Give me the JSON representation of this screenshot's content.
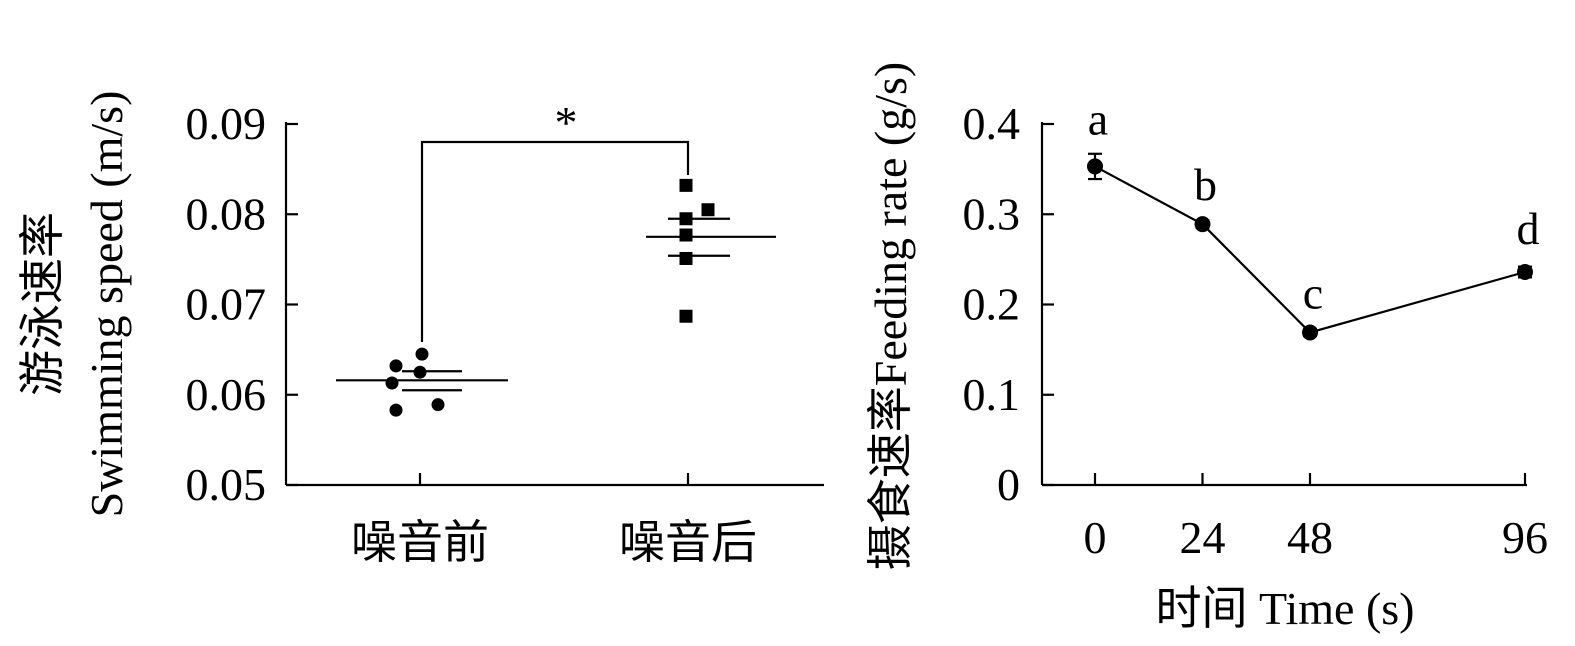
{
  "chart_data": [
    {
      "type": "scatter",
      "title": "",
      "ylabel_cn": "游泳速率",
      "ylabel_en": "Swimming speed (m/s)",
      "xlabel": "",
      "ylim": [
        0.05,
        0.09
      ],
      "yticks": [
        "0.05",
        "0.06",
        "0.07",
        "0.08",
        "0.09"
      ],
      "categories": [
        "噪音前",
        "噪音后"
      ],
      "groups": [
        {
          "category": "噪音前",
          "marker": "circle",
          "points": [
            0.0632,
            0.0645,
            0.0625,
            0.0613,
            0.0583,
            0.0589
          ],
          "mean": 0.0616,
          "se_upper": 0.0626,
          "se_lower": 0.0605
        },
        {
          "category": "噪音后",
          "marker": "square",
          "points": [
            0.0832,
            0.0795,
            0.0805,
            0.0777,
            0.0751,
            0.0687
          ],
          "mean": 0.0775,
          "se_upper": 0.0795,
          "se_lower": 0.0754
        }
      ],
      "significance": "*"
    },
    {
      "type": "line",
      "title": "",
      "ylabel": "摄食速率Feeding rate (g/s)",
      "xlabel": "时间 Time (s)",
      "ylim": [
        0,
        0.4
      ],
      "yticks": [
        "0",
        "0.1",
        "0.2",
        "0.3",
        "0.4"
      ],
      "x": [
        0,
        24,
        48,
        96
      ],
      "xticks": [
        "0",
        "24",
        "48",
        "96"
      ],
      "series": [
        {
          "values": [
            0.353,
            0.289,
            0.169,
            0.236
          ],
          "errors": [
            0.014,
            0.004,
            0.004,
            0.006
          ],
          "labels": [
            "a",
            "b",
            "c",
            "d"
          ]
        }
      ]
    }
  ]
}
